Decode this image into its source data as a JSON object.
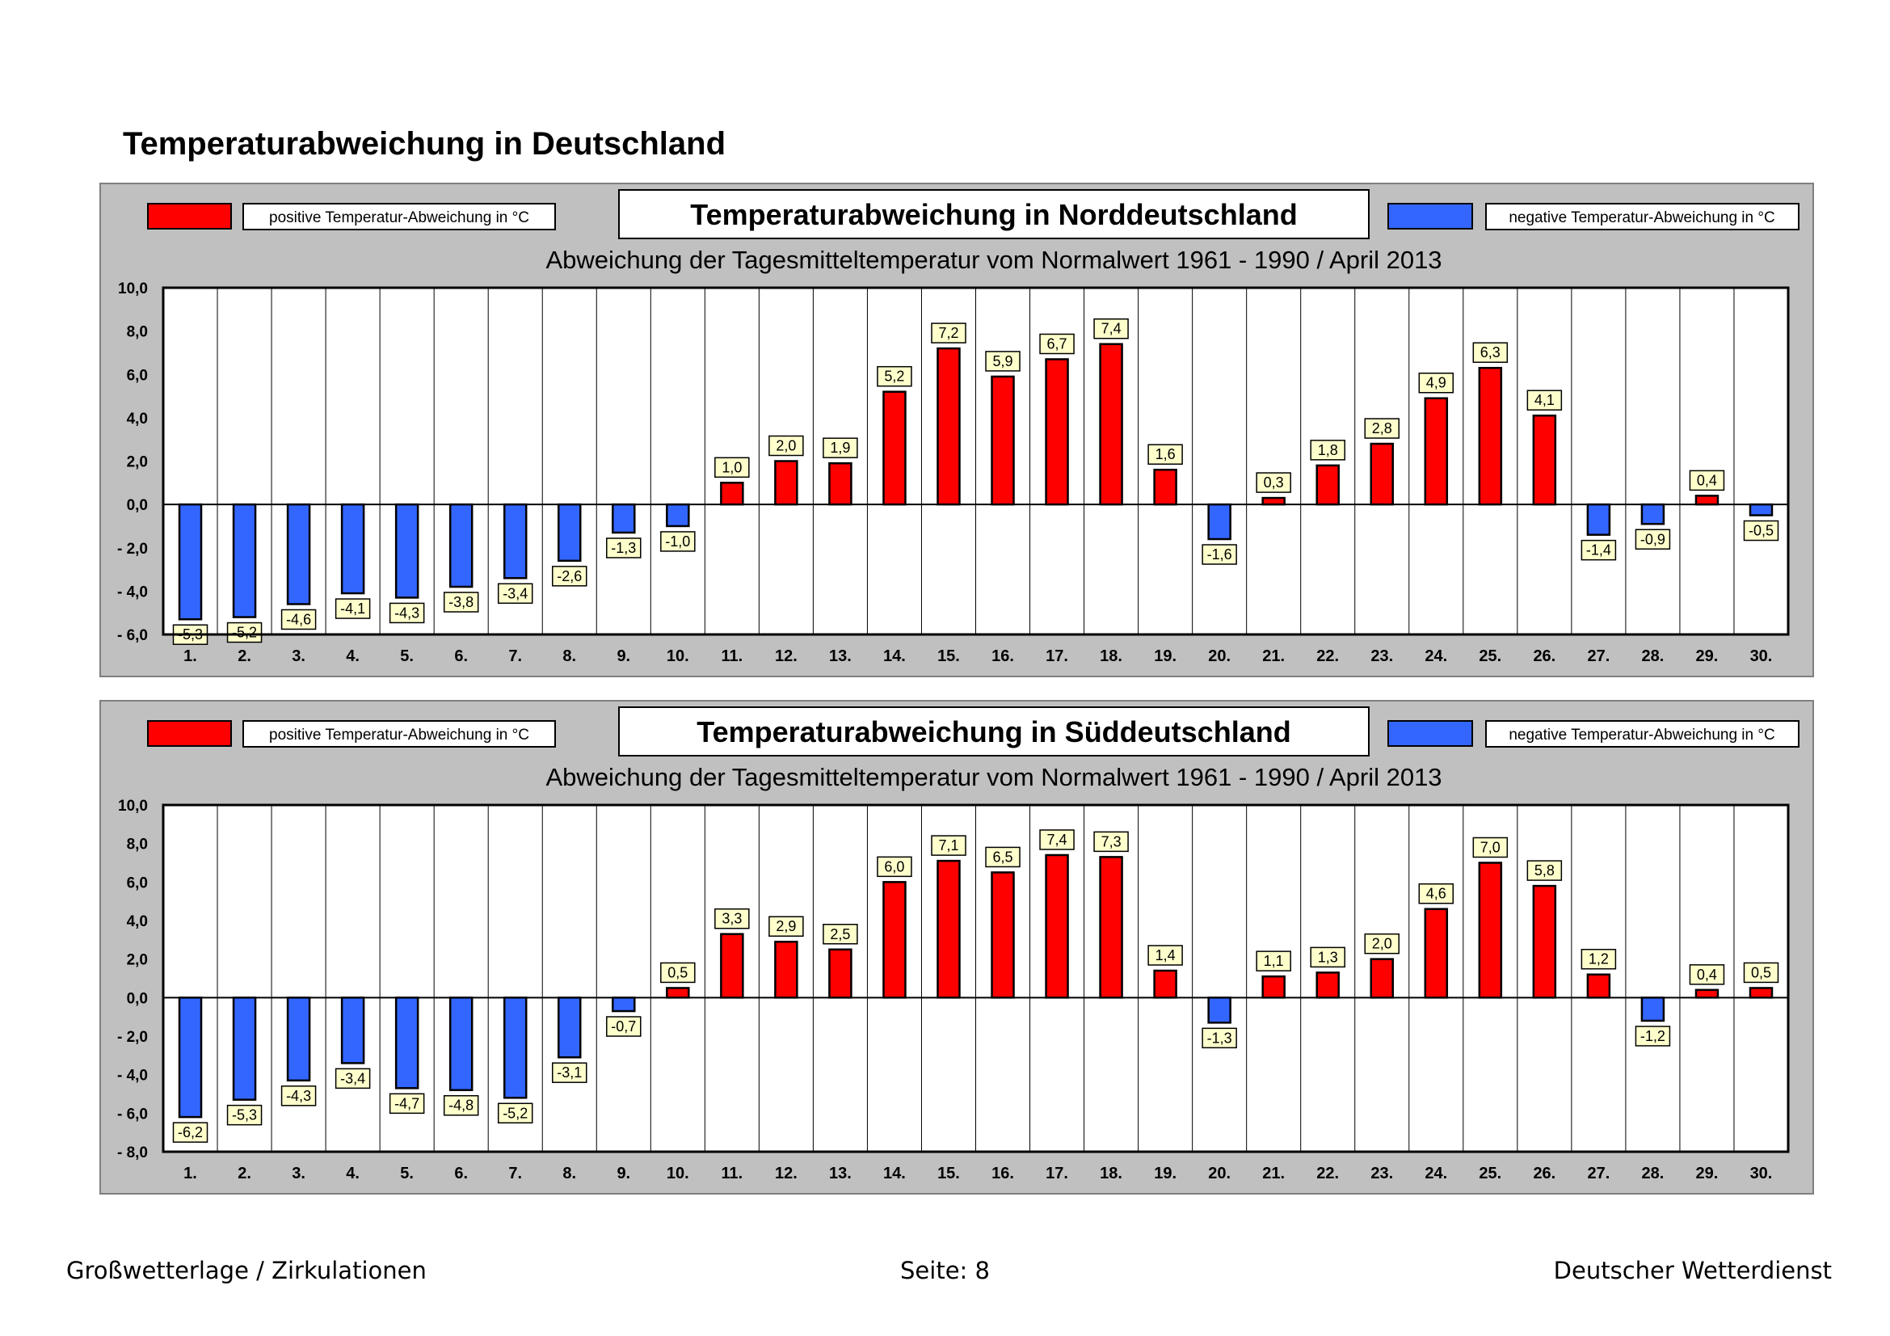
{
  "page": {
    "title": "Temperaturabweichung in Deutschland",
    "footer_left": "Großwetterlage / Zirkulationen",
    "footer_center": "Seite: 8",
    "footer_right": "Deutscher Wetterdienst"
  },
  "colors": {
    "positive": "#ff0000",
    "negative": "#3366ff",
    "label_fill": "#ffffcc",
    "panel_bg": "#c0c0c0"
  },
  "chart_data": [
    {
      "type": "bar",
      "title": "Temperaturabweichung in Norddeutschland",
      "subtitle": "Abweichung der Tagesmitteltemperatur vom Normalwert 1961 - 1990  /  April 2013",
      "legend_positive": "positive Temperatur-Abweichung in °C",
      "legend_negative": "negative Temperatur-Abweichung in °C",
      "categories": [
        "1.",
        "2.",
        "3.",
        "4.",
        "5.",
        "6.",
        "7.",
        "8.",
        "9.",
        "10.",
        "11.",
        "12.",
        "13.",
        "14.",
        "15.",
        "16.",
        "17.",
        "18.",
        "19.",
        "20.",
        "21.",
        "22.",
        "23.",
        "24.",
        "25.",
        "26.",
        "27.",
        "28.",
        "29.",
        "30."
      ],
      "values": [
        -5.3,
        -5.2,
        -4.6,
        -4.1,
        -4.3,
        -3.8,
        -3.4,
        -2.6,
        -1.3,
        -1.0,
        1.0,
        2.0,
        1.9,
        5.2,
        7.2,
        5.9,
        6.7,
        7.4,
        1.6,
        -1.6,
        0.3,
        1.8,
        2.8,
        4.9,
        6.3,
        4.1,
        -1.4,
        -0.9,
        0.4,
        -0.5
      ],
      "value_labels": [
        "-5,3",
        "-5,2",
        "-4,6",
        "-4,1",
        "-4,3",
        "-3,8",
        "-3,4",
        "-2,6",
        "-1,3",
        "-1,0",
        "1,0",
        "2,0",
        "1,9",
        "5,2",
        "7,2",
        "5,9",
        "6,7",
        "7,4",
        "1,6",
        "-1,6",
        "0,3",
        "1,8",
        "2,8",
        "4,9",
        "6,3",
        "4,1",
        "-1,4",
        "-0,9",
        "0,4",
        "-0,5"
      ],
      "ylim": [
        -6,
        10
      ],
      "yticks": [
        10,
        8,
        6,
        4,
        2,
        0,
        -2,
        -4,
        -6
      ],
      "ytick_labels": [
        "10,0",
        "8,0",
        "6,0",
        "4,0",
        "2,0",
        "0,0",
        "- 2,0",
        "- 4,0",
        "- 6,0"
      ]
    },
    {
      "type": "bar",
      "title": "Temperaturabweichung in Süddeutschland",
      "subtitle": "Abweichung der Tagesmitteltemperatur vom Normalwert 1961 - 1990  /  April 2013",
      "legend_positive": "positive Temperatur-Abweichung in °C",
      "legend_negative": "negative Temperatur-Abweichung in °C",
      "categories": [
        "1.",
        "2.",
        "3.",
        "4.",
        "5.",
        "6.",
        "7.",
        "8.",
        "9.",
        "10.",
        "11.",
        "12.",
        "13.",
        "14.",
        "15.",
        "16.",
        "17.",
        "18.",
        "19.",
        "20.",
        "21.",
        "22.",
        "23.",
        "24.",
        "25.",
        "26.",
        "27.",
        "28.",
        "29.",
        "30."
      ],
      "values": [
        -6.2,
        -5.3,
        -4.3,
        -3.4,
        -4.7,
        -4.8,
        -5.2,
        -3.1,
        -0.7,
        0.5,
        3.3,
        2.9,
        2.5,
        6.0,
        7.1,
        6.5,
        7.4,
        7.3,
        1.4,
        -1.3,
        1.1,
        1.3,
        2.0,
        4.6,
        7.0,
        5.8,
        1.2,
        -1.2,
        0.4,
        0.5
      ],
      "value_labels": [
        "-6,2",
        "-5,3",
        "-4,3",
        "-3,4",
        "-4,7",
        "-4,8",
        "-5,2",
        "-3,1",
        "-0,7",
        "0,5",
        "3,3",
        "2,9",
        "2,5",
        "6,0",
        "7,1",
        "6,5",
        "7,4",
        "7,3",
        "1,4",
        "-1,3",
        "1,1",
        "1,3",
        "2,0",
        "4,6",
        "7,0",
        "5,8",
        "1,2",
        "-1,2",
        "0,4",
        "0,5"
      ],
      "ylim": [
        -8,
        10
      ],
      "yticks": [
        10,
        8,
        6,
        4,
        2,
        0,
        -2,
        -4,
        -6,
        -8
      ],
      "ytick_labels": [
        "10,0",
        "8,0",
        "6,0",
        "4,0",
        "2,0",
        "0,0",
        "- 2,0",
        "- 4,0",
        "- 6,0",
        "- 8,0"
      ]
    }
  ]
}
